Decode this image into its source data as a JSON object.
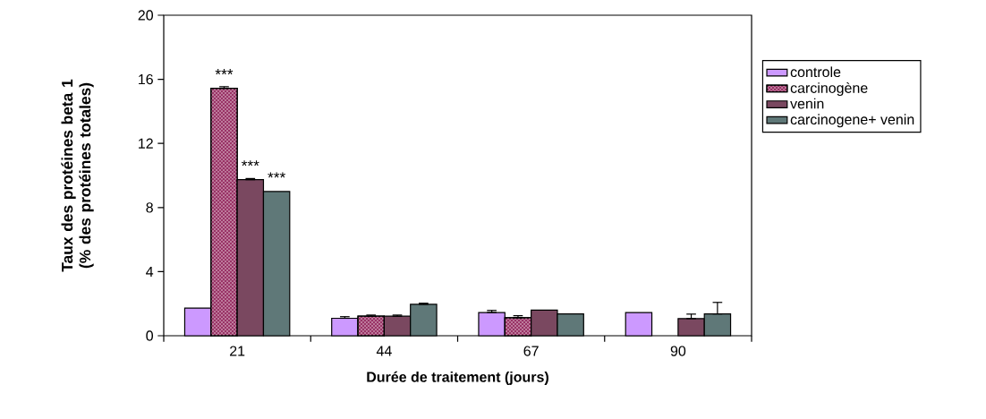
{
  "chart_data": {
    "type": "bar",
    "xlabel": "Durée de traitement (jours)",
    "ylabel": "Taux des protéines beta 1 (% des protéines totales)",
    "categories": [
      "21",
      "44",
      "67",
      "90"
    ],
    "series": [
      {
        "name": "controle",
        "color": "#cc99ff",
        "values": [
          1.73,
          1.09,
          1.45,
          1.45
        ],
        "errors": [
          null,
          [
            1.09,
            1.19
          ],
          [
            1.45,
            1.58
          ],
          null
        ]
      },
      {
        "name": "carcinogène",
        "color": "#993366",
        "values": [
          15.44,
          1.22,
          1.12,
          null
        ],
        "errors": [
          [
            15.44,
            15.54
          ],
          [
            1.22,
            1.29
          ],
          [
            1.12,
            1.25
          ],
          null
        ]
      },
      {
        "name": "venin",
        "color": "#7a4860",
        "values": [
          9.74,
          1.22,
          1.6,
          1.07
        ],
        "errors": [
          [
            9.74,
            9.81
          ],
          [
            1.22,
            1.29
          ],
          null,
          [
            1.07,
            1.35
          ]
        ]
      },
      {
        "name": "carcinogene+ venin",
        "color": "#5f7878",
        "values": [
          9.0,
          1.96,
          1.36,
          1.36
        ],
        "errors": [
          null,
          [
            1.96,
            2.03
          ],
          null,
          [
            1.36,
            2.08
          ]
        ]
      }
    ],
    "ylim": [
      0,
      20
    ],
    "yticks": [
      0,
      4,
      8,
      12,
      16,
      20
    ],
    "annotations": [
      {
        "text": "***",
        "x": "21",
        "y": 15.44
      },
      {
        "text": "***",
        "x": "21",
        "y": 9.74
      },
      {
        "text": "***",
        "x": "21",
        "y": 9.0
      }
    ],
    "grid": false,
    "legend": "right"
  }
}
